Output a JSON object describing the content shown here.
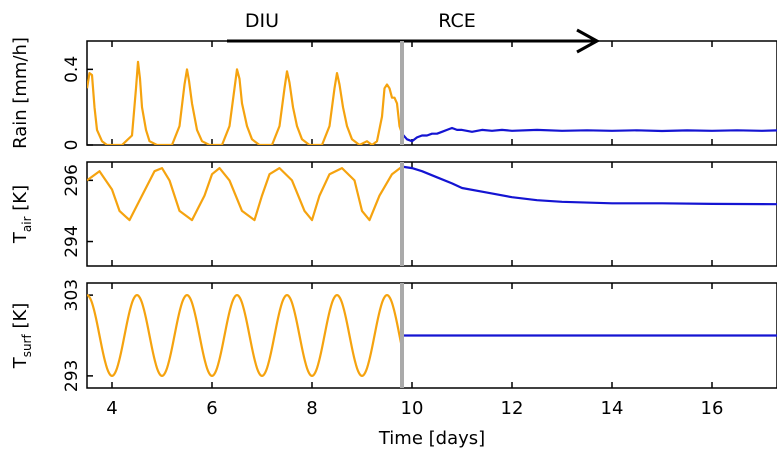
{
  "chart_data": {
    "type": "line",
    "phase_labels": [
      "DIU",
      "RCE"
    ],
    "xlabel": "Time [days]",
    "xlim": [
      3.5,
      17.3
    ],
    "xticks": [
      4,
      6,
      8,
      10,
      12,
      14,
      16
    ],
    "switch_day": 9.8,
    "arrow": {
      "from_day": 6.3,
      "to_day": 13.7
    },
    "colors": {
      "diu": "#f5a30f",
      "rce": "#1414d2",
      "switch": "#aaaaaa",
      "axes": "#000000"
    },
    "panels": [
      {
        "ylabel": "Rain [mm/h]",
        "ylim": [
          0,
          0.55
        ],
        "yticks": [
          0,
          0.4
        ],
        "diu_series": {
          "x": [
            3.5,
            3.55,
            3.6,
            3.65,
            3.7,
            3.8,
            3.9,
            4.0,
            4.2,
            4.4,
            4.48,
            4.52,
            4.56,
            4.6,
            4.68,
            4.75,
            4.9,
            5.2,
            5.35,
            5.45,
            5.5,
            5.54,
            5.6,
            5.7,
            5.8,
            5.95,
            6.2,
            6.35,
            6.45,
            6.5,
            6.55,
            6.6,
            6.7,
            6.8,
            6.95,
            7.2,
            7.35,
            7.45,
            7.5,
            7.55,
            7.62,
            7.7,
            7.8,
            7.95,
            8.2,
            8.35,
            8.45,
            8.5,
            8.55,
            8.62,
            8.7,
            8.8,
            8.95,
            9.1,
            9.2,
            9.3,
            9.4,
            9.45,
            9.5,
            9.55,
            9.6,
            9.65,
            9.7,
            9.75,
            9.8
          ],
          "y": [
            0.3,
            0.38,
            0.37,
            0.2,
            0.08,
            0.02,
            0.0,
            0.0,
            0.0,
            0.05,
            0.3,
            0.44,
            0.35,
            0.2,
            0.08,
            0.02,
            0.0,
            0.0,
            0.1,
            0.32,
            0.4,
            0.34,
            0.22,
            0.08,
            0.02,
            0.0,
            0.0,
            0.1,
            0.3,
            0.4,
            0.35,
            0.22,
            0.1,
            0.03,
            0.0,
            0.0,
            0.1,
            0.3,
            0.39,
            0.33,
            0.2,
            0.1,
            0.03,
            0.0,
            0.0,
            0.1,
            0.3,
            0.38,
            0.32,
            0.2,
            0.1,
            0.03,
            0.0,
            0.02,
            0.0,
            0.02,
            0.15,
            0.3,
            0.32,
            0.3,
            0.25,
            0.25,
            0.22,
            0.1,
            0.06
          ]
        },
        "rce_series": {
          "x": [
            9.8,
            9.9,
            10.0,
            10.1,
            10.2,
            10.3,
            10.4,
            10.5,
            10.6,
            10.7,
            10.8,
            10.9,
            11.0,
            11.2,
            11.4,
            11.6,
            11.8,
            12.0,
            12.5,
            13.0,
            13.5,
            14.0,
            14.5,
            15.0,
            15.5,
            16.0,
            16.5,
            17.0,
            17.3
          ],
          "y": [
            0.06,
            0.03,
            0.02,
            0.04,
            0.05,
            0.05,
            0.06,
            0.06,
            0.07,
            0.08,
            0.09,
            0.08,
            0.08,
            0.07,
            0.08,
            0.075,
            0.08,
            0.075,
            0.08,
            0.075,
            0.078,
            0.075,
            0.078,
            0.074,
            0.077,
            0.075,
            0.078,
            0.075,
            0.077
          ]
        }
      },
      {
        "ylabel": "T_air [K]",
        "ylabel_main": "T",
        "ylabel_sub": "air",
        "ylabel_unit": " [K]",
        "ylim": [
          293.2,
          296.6
        ],
        "yticks": [
          294,
          296
        ],
        "diu_series": {
          "x": [
            3.5,
            3.75,
            4.0,
            4.15,
            4.35,
            4.6,
            4.85,
            5.0,
            5.15,
            5.35,
            5.6,
            5.85,
            6.0,
            6.15,
            6.35,
            6.6,
            6.85,
            7.0,
            7.15,
            7.35,
            7.6,
            7.85,
            8.0,
            8.15,
            8.35,
            8.6,
            8.85,
            9.0,
            9.15,
            9.35,
            9.6,
            9.8
          ],
          "y": [
            296.0,
            296.3,
            295.7,
            295.0,
            294.7,
            295.5,
            296.3,
            296.4,
            296.0,
            295.0,
            294.7,
            295.5,
            296.2,
            296.4,
            296.0,
            295.0,
            294.7,
            295.5,
            296.2,
            296.4,
            296.0,
            295.0,
            294.7,
            295.5,
            296.2,
            296.4,
            296.0,
            295.0,
            294.7,
            295.5,
            296.2,
            296.45
          ]
        },
        "rce_series": {
          "x": [
            9.8,
            10.0,
            10.2,
            10.5,
            10.8,
            11.0,
            11.5,
            12.0,
            12.5,
            13.0,
            14.0,
            15.0,
            16.0,
            17.3
          ],
          "y": [
            296.45,
            296.4,
            296.3,
            296.1,
            295.9,
            295.75,
            295.6,
            295.45,
            295.35,
            295.3,
            295.25,
            295.25,
            295.23,
            295.22
          ]
        }
      },
      {
        "ylabel": "T_surf [K]",
        "ylabel_main": "T",
        "ylabel_sub": "surf",
        "ylabel_unit": " [K]",
        "ylim": [
          291.5,
          304.5
        ],
        "yticks": [
          293,
          303
        ],
        "diu_series": {
          "mean": 298,
          "amplitude": 5,
          "peak_day": 3.5,
          "period_days": 1,
          "x_start": 3.5,
          "x_end": 9.8
        },
        "rce_series": {
          "x": [
            9.8,
            17.3
          ],
          "y": [
            298,
            298
          ]
        }
      }
    ]
  }
}
